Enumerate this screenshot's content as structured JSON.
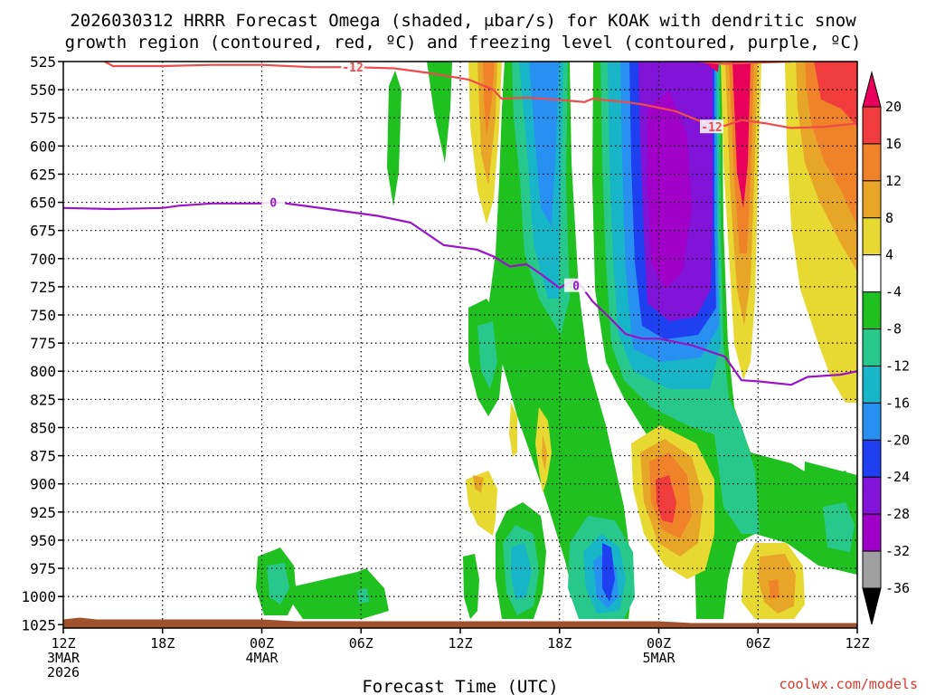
{
  "title_line1": "2026030312 HRRR Forecast Omega (shaded, μbar/s) for KOAK with dendritic snow",
  "title_line2": "growth region (contoured, red, ºC) and freezing level (contoured, purple, ºC)",
  "x_axis_title": "Forecast Time (UTC)",
  "credit": "coolwx.com/models",
  "chart_data": {
    "type": "heatmap",
    "y_ticks": [
      525,
      550,
      575,
      600,
      625,
      650,
      675,
      700,
      725,
      750,
      775,
      800,
      825,
      850,
      875,
      900,
      925,
      950,
      975,
      1000,
      1025
    ],
    "x_ticks": [
      {
        "hour": 0,
        "label": "12Z",
        "sub1": "3MAR",
        "sub2": "2026"
      },
      {
        "hour": 6,
        "label": "18Z",
        "sub1": "",
        "sub2": ""
      },
      {
        "hour": 12,
        "label": "00Z",
        "sub1": "4MAR",
        "sub2": ""
      },
      {
        "hour": 18,
        "label": "06Z",
        "sub1": "",
        "sub2": ""
      },
      {
        "hour": 24,
        "label": "12Z",
        "sub1": "",
        "sub2": ""
      },
      {
        "hour": 30,
        "label": "18Z",
        "sub1": "",
        "sub2": ""
      },
      {
        "hour": 36,
        "label": "00Z",
        "sub1": "5MAR",
        "sub2": ""
      },
      {
        "hour": 42,
        "label": "06Z",
        "sub1": "",
        "sub2": ""
      },
      {
        "hour": 48,
        "label": "12Z",
        "sub1": "",
        "sub2": ""
      }
    ],
    "xlim": [
      0,
      48
    ],
    "ylim": [
      525,
      1028
    ],
    "grid": true,
    "colorbar": {
      "labels": [
        "20",
        "16",
        "12",
        "8",
        "4",
        "-4",
        "-8",
        "-12",
        "-16",
        "-20",
        "-24",
        "-28",
        "-32",
        "-36"
      ],
      "colors": [
        "#e8005a",
        "#f03c3c",
        "#f0822a",
        "#e8a628",
        "#e8d932",
        "#ffffff",
        "#1fc01f",
        "#28c88c",
        "#18b4c8",
        "#2890f0",
        "#1e40f0",
        "#8214d8",
        "#a000c8",
        "#a0a0a0",
        "#000000"
      ]
    },
    "ground": {
      "pressure": 1022,
      "color": "#a0522d"
    },
    "contours": [
      {
        "name": "-12",
        "color": "#f04a4a",
        "label_positions": [
          {
            "hour": 17.5,
            "p": 530
          },
          {
            "hour": 39.2,
            "p": 583
          }
        ],
        "points": [
          [
            2.5,
            525
          ],
          [
            3,
            529
          ],
          [
            6,
            529
          ],
          [
            9,
            528
          ],
          [
            12,
            528
          ],
          [
            15,
            530
          ],
          [
            17.5,
            530
          ],
          [
            20,
            531
          ],
          [
            22,
            535
          ],
          [
            24.5,
            541
          ],
          [
            26,
            550
          ],
          [
            26.5,
            558
          ],
          [
            28,
            557
          ],
          [
            30,
            559
          ],
          [
            31.5,
            561
          ],
          [
            32,
            558
          ],
          [
            34,
            561
          ],
          [
            35,
            563
          ],
          [
            37,
            569
          ],
          [
            39,
            581
          ],
          [
            40,
            582
          ],
          [
            41,
            577
          ],
          [
            42.5,
            580
          ],
          [
            44,
            584
          ],
          [
            46,
            583
          ],
          [
            48,
            580
          ]
        ]
      },
      {
        "name": "-12 upper",
        "color": "#f04a4a",
        "label_positions": [],
        "points": [
          [
            38.5,
            525
          ],
          [
            40,
            527
          ],
          [
            42,
            526
          ],
          [
            44,
            525
          ]
        ]
      },
      {
        "name": "0",
        "color": "#9a14c8",
        "label_positions": [
          {
            "hour": 12.7,
            "p": 650
          },
          {
            "hour": 31,
            "p": 724
          }
        ],
        "points": [
          [
            0,
            655
          ],
          [
            3,
            656
          ],
          [
            6,
            655
          ],
          [
            7,
            653
          ],
          [
            9,
            651
          ],
          [
            12,
            651
          ],
          [
            13,
            650
          ],
          [
            15,
            654
          ],
          [
            17,
            658
          ],
          [
            19,
            662
          ],
          [
            21,
            668
          ],
          [
            23,
            688
          ],
          [
            24,
            690
          ],
          [
            25,
            692
          ],
          [
            26,
            698
          ],
          [
            27,
            707
          ],
          [
            28,
            705
          ],
          [
            29,
            715
          ],
          [
            30,
            726
          ],
          [
            31,
            718
          ],
          [
            32,
            738
          ],
          [
            33,
            752
          ],
          [
            34,
            767
          ],
          [
            35,
            771
          ],
          [
            36,
            771
          ],
          [
            38,
            777
          ],
          [
            40,
            787
          ],
          [
            41,
            808
          ],
          [
            42,
            809
          ],
          [
            44,
            812
          ],
          [
            45,
            805
          ],
          [
            47,
            803
          ],
          [
            48,
            800
          ]
        ]
      }
    ]
  }
}
